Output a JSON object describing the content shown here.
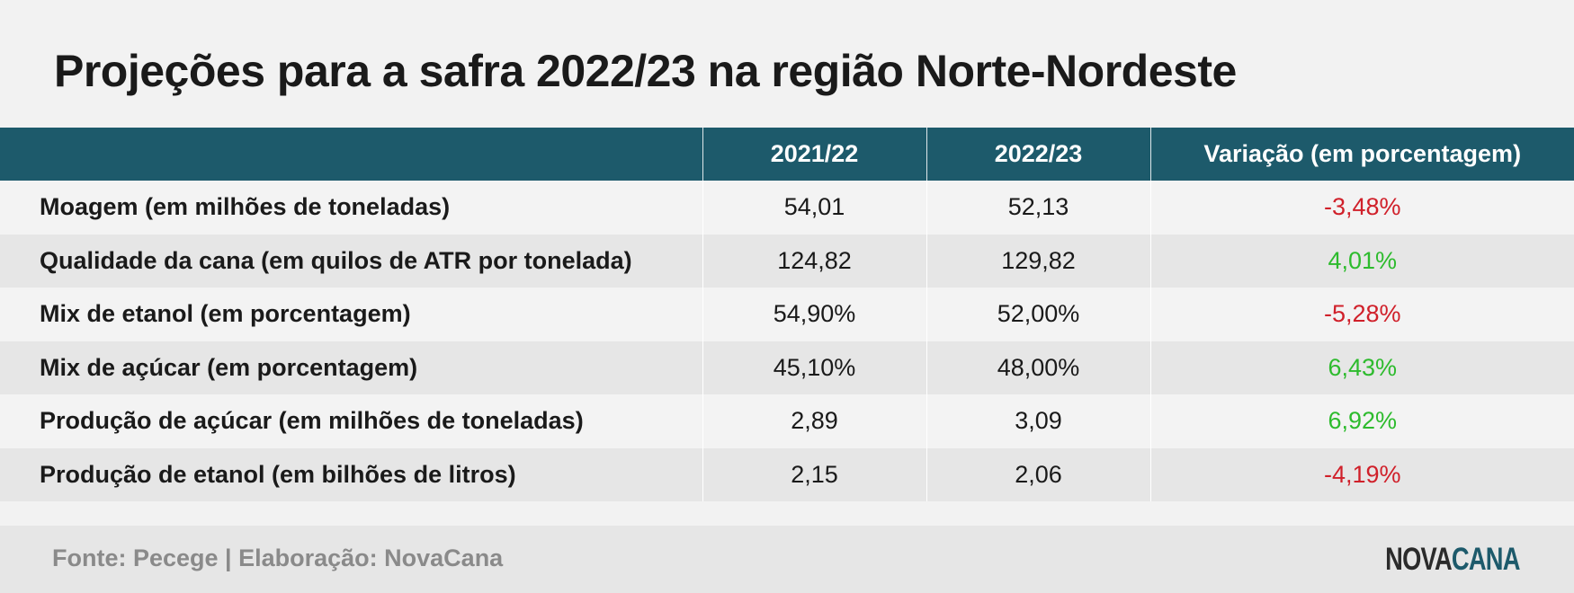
{
  "title": "Projeções para a safra 2022/23 na região Norte-Nordeste",
  "table": {
    "headers": [
      "",
      "2021/22",
      "2022/23",
      "Variação (em porcentagem)"
    ],
    "rows": [
      {
        "label": "Moagem (em milhões de toneladas)",
        "v2021": "54,01",
        "v2022": "52,13",
        "variation": "-3,48%",
        "trend": "negative"
      },
      {
        "label": "Qualidade da cana (em quilos de ATR por tonelada)",
        "v2021": "124,82",
        "v2022": "129,82",
        "variation": "4,01%",
        "trend": "positive"
      },
      {
        "label": "Mix de etanol (em porcentagem)",
        "v2021": "54,90%",
        "v2022": "52,00%",
        "variation": "-5,28%",
        "trend": "negative"
      },
      {
        "label": "Mix de açúcar (em porcentagem)",
        "v2021": "45,10%",
        "v2022": "48,00%",
        "variation": "6,43%",
        "trend": "positive"
      },
      {
        "label": "Produção de açúcar (em milhões de toneladas)",
        "v2021": "2,89",
        "v2022": "3,09",
        "variation": "6,92%",
        "trend": "positive"
      },
      {
        "label": "Produção de etanol (em bilhões de litros)",
        "v2021": "2,15",
        "v2022": "2,06",
        "variation": "-4,19%",
        "trend": "negative"
      }
    ]
  },
  "footer": {
    "source": "Fonte: Pecege | Elaboração: NovaCana",
    "logo_part1": "NOVA",
    "logo_part2": "CANA"
  },
  "colors": {
    "header_bg": "#1d5a6b",
    "negative": "#d0202a",
    "positive": "#2dbb2d"
  }
}
